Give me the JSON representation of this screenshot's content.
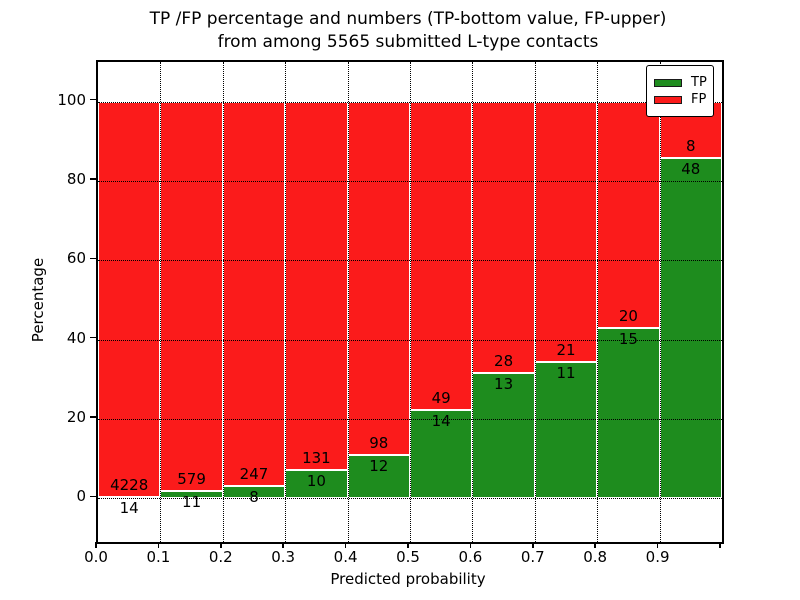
{
  "title": {
    "line1": "TP /FP percentage and numbers (TP-bottom value, FP-upper)",
    "line2": "from among 5565 submitted L-type contacts"
  },
  "legend": {
    "items": [
      {
        "label": "TP",
        "color": "#1e8c1e"
      },
      {
        "label": "FP",
        "color": "#fb1b1b"
      }
    ]
  },
  "colors": {
    "tp": "#1e8c1e",
    "fp": "#fb1b1b",
    "grid": "#000000",
    "background": "#ffffff"
  },
  "chart_data": {
    "type": "bar",
    "stacked": true,
    "title": "TP /FP percentage and numbers (TP-bottom value, FP-upper) from among 5565 submitted L-type contacts",
    "xlabel": "Predicted probability",
    "ylabel": "Percentage",
    "total_contacts": 5565,
    "bin_width": 0.1,
    "categories": [
      "0.0",
      "0.1",
      "0.2",
      "0.3",
      "0.4",
      "0.5",
      "0.6",
      "0.7",
      "0.8",
      "0.9"
    ],
    "series": [
      {
        "name": "TP",
        "color": "#1e8c1e",
        "counts": [
          14,
          11,
          8,
          10,
          12,
          14,
          13,
          11,
          15,
          48
        ]
      },
      {
        "name": "FP",
        "color": "#fb1b1b",
        "counts": [
          4228,
          579,
          247,
          131,
          98,
          49,
          28,
          21,
          20,
          8
        ]
      }
    ],
    "tp_percent": [
      0.33,
      1.86,
      3.14,
      7.09,
      10.91,
      22.22,
      31.71,
      34.38,
      42.86,
      85.71
    ],
    "yticks": [
      0,
      20,
      40,
      60,
      80,
      100
    ],
    "xticks": [
      "0.0",
      "0.1",
      "0.2",
      "0.3",
      "0.4",
      "0.5",
      "0.6",
      "0.7",
      "0.8",
      "0.9"
    ],
    "ylim": [
      -11,
      110
    ],
    "xlim": [
      0.0,
      1.0
    ],
    "grid": "dotted",
    "legend_position": "upper right"
  }
}
